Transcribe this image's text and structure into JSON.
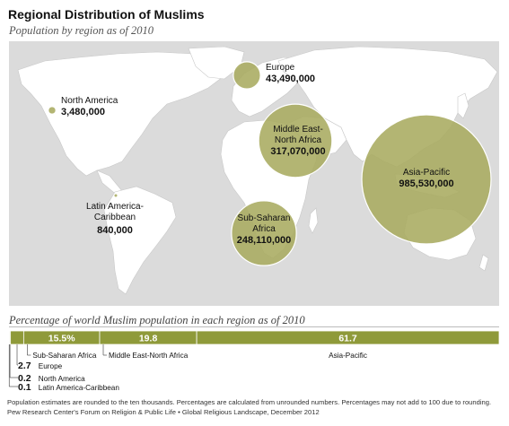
{
  "title": "Regional Distribution of Muslims",
  "subtitle": "Population by region as of 2010",
  "chart_data": [
    {
      "type": "bubble-map",
      "title": "Regional Distribution of Muslims",
      "subtitle": "Population by region as of 2010",
      "series": [
        {
          "region": "North America",
          "value": 3480000,
          "value_label": "3,480,000"
        },
        {
          "region": "Latin America-Caribbean",
          "value": 840000,
          "value_label": "840,000"
        },
        {
          "region": "Europe",
          "value": 43490000,
          "value_label": "43,490,000"
        },
        {
          "region": "Middle East-North Africa",
          "value": 317070000,
          "value_label": "317,070,000"
        },
        {
          "region": "Sub-Saharan Africa",
          "value": 248110000,
          "value_label": "248,110,000"
        },
        {
          "region": "Asia-Pacific",
          "value": 985530000,
          "value_label": "985,530,000"
        }
      ]
    },
    {
      "type": "bar",
      "stacked": true,
      "title": "Percentage of world Muslim population in each region as of 2010",
      "series": [
        {
          "name": "Latin America-Caribbean",
          "value": 0.1,
          "label": "0.1"
        },
        {
          "name": "North America",
          "value": 0.2,
          "label": "0.2"
        },
        {
          "name": "Europe",
          "value": 2.7,
          "label": "2.7"
        },
        {
          "name": "Sub-Saharan Africa",
          "value": 15.5,
          "label": "15.5%"
        },
        {
          "name": "Middle East-North Africa",
          "value": 19.8,
          "label": "19.8"
        },
        {
          "name": "Asia-Pacific",
          "value": 61.7,
          "label": "61.7"
        }
      ]
    }
  ],
  "labels": {
    "north_america": {
      "name": "North America",
      "value": "3,480,000"
    },
    "latin_america_1": "Latin America-",
    "latin_america_2": "Caribbean",
    "latin_america_value": "840,000",
    "europe": {
      "name": "Europe",
      "value": "43,490,000"
    },
    "mena_1": "Middle East-",
    "mena_2": "North Africa",
    "mena_value": "317,070,000",
    "ssa_1": "Sub-Saharan",
    "ssa_2": "Africa",
    "ssa_value": "248,110,000",
    "asia": {
      "name": "Asia-Pacific",
      "value": "985,530,000"
    }
  },
  "bar_title": "Percentage of world Muslim population in each region as of 2010",
  "footnote1": "Population estimates are rounded to the ten thousands.  Percentages are calculated from unrounded numbers.  Percentages may not add to 100 due to rounding.",
  "footnote2": "Pew Research Center's Forum on Religion & Public Life • Global Religious Landscape, December 2012",
  "colors": {
    "bubble": "#a9ab60",
    "bubble_stroke": "#ffffff",
    "bar": "#8f9a3a",
    "land": "#ffffff",
    "ocean": "#dbdbdb"
  }
}
